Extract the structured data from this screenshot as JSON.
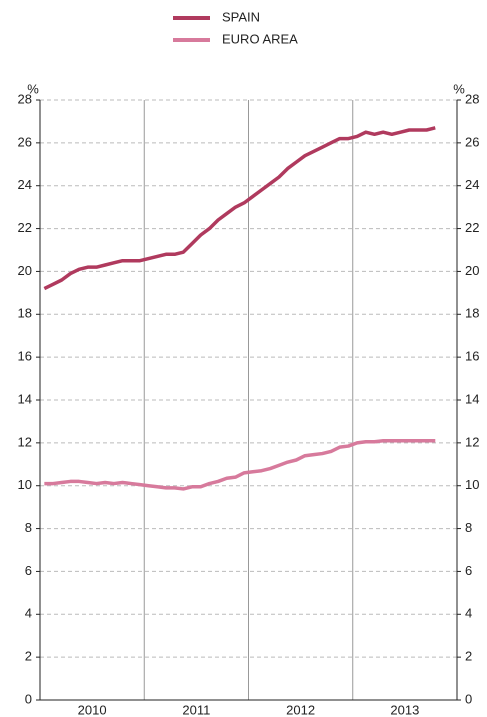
{
  "chart_data": {
    "type": "line",
    "y_unit": "%",
    "y2_unit": "%",
    "categories": [
      null,
      null,
      null,
      null,
      null,
      "2010",
      null,
      null,
      null,
      null,
      null,
      null,
      null,
      null,
      null,
      null,
      null,
      "2011",
      null,
      null,
      null,
      null,
      null,
      null,
      null,
      null,
      null,
      null,
      null,
      "2012",
      null,
      null,
      null,
      null,
      null,
      null,
      null,
      null,
      null,
      null,
      null,
      "2013",
      null,
      null,
      null,
      null,
      null,
      null
    ],
    "series": [
      {
        "name": "SPAIN",
        "color": "#b03a5e",
        "values": [
          19.2,
          19.4,
          19.6,
          19.9,
          20.1,
          20.2,
          20.2,
          20.3,
          20.4,
          20.5,
          20.5,
          20.5,
          20.6,
          20.7,
          20.8,
          20.8,
          20.9,
          21.3,
          21.7,
          22.0,
          22.4,
          22.7,
          23.0,
          23.2,
          23.5,
          23.8,
          24.1,
          24.4,
          24.8,
          25.1,
          25.4,
          25.6,
          25.8,
          26.0,
          26.2,
          26.2,
          26.3,
          26.5,
          26.4,
          26.5,
          26.4,
          26.5,
          26.6,
          26.6,
          26.6,
          26.7,
          null,
          null
        ]
      },
      {
        "name": "EURO AREA",
        "color": "#d77a9c",
        "values": [
          10.1,
          10.1,
          10.15,
          10.2,
          10.2,
          10.15,
          10.1,
          10.15,
          10.1,
          10.15,
          10.1,
          10.05,
          10.0,
          9.95,
          9.9,
          9.9,
          9.85,
          9.95,
          9.95,
          10.1,
          10.2,
          10.35,
          10.4,
          10.6,
          10.65,
          10.7,
          10.8,
          10.95,
          11.1,
          11.2,
          11.4,
          11.45,
          11.5,
          11.6,
          11.8,
          11.85,
          12.0,
          12.05,
          12.05,
          12.1,
          12.1,
          12.1,
          12.1,
          12.1,
          12.1,
          12.1,
          null,
          null
        ]
      }
    ],
    "ylim": [
      0,
      28
    ],
    "yticks": [
      0,
      2,
      4,
      6,
      8,
      10,
      12,
      14,
      16,
      18,
      20,
      22,
      24,
      26,
      28
    ],
    "y2lim": [
      0,
      28
    ],
    "y2ticks": [
      0,
      2,
      4,
      6,
      8,
      10,
      12,
      14,
      16,
      18,
      20,
      22,
      24,
      26,
      28
    ],
    "grid": true
  }
}
